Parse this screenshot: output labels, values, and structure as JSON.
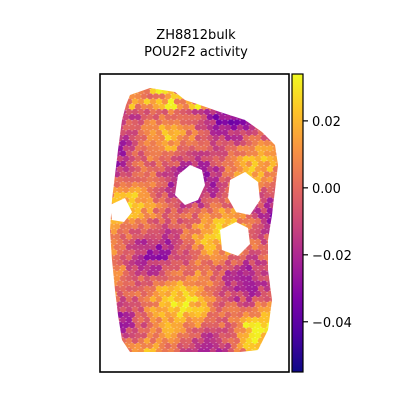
{
  "chart_data": {
    "type": "heatmap",
    "title_lines": [
      "ZH8812bulk",
      "POU2F2 activity"
    ],
    "xlabel": "",
    "ylabel": "",
    "colormap": "plasma",
    "colorbar": {
      "vmin": -0.055,
      "vmax": 0.034,
      "ticks": [
        0.02,
        0.0,
        -0.02,
        -0.04
      ],
      "tick_labels": [
        "0.02",
        "0.00",
        "−0.02",
        "−0.04"
      ]
    },
    "grid": false,
    "axes_visible": false
  }
}
